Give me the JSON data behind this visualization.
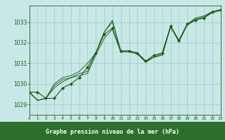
{
  "title": "Graphe pression niveau de la mer (hPa)",
  "bg_color": "#c8e8e8",
  "line_color": "#1a5c1a",
  "label_bar_color": "#2d6e2d",
  "label_text_color": "#ffffff",
  "grid_color": "#a0c8c0",
  "xlim": [
    0,
    23
  ],
  "ylim": [
    1028.5,
    1033.8
  ],
  "yticks": [
    1029,
    1030,
    1031,
    1032,
    1033
  ],
  "xticks": [
    0,
    1,
    2,
    3,
    4,
    5,
    6,
    7,
    8,
    9,
    10,
    11,
    12,
    13,
    14,
    15,
    16,
    17,
    18,
    19,
    20,
    21,
    22,
    23
  ],
  "series": [
    [
      1029.6,
      1029.6,
      1029.3,
      1029.3,
      1029.8,
      1030.0,
      1030.3,
      1030.8,
      1031.5,
      1032.4,
      1032.7,
      1031.6,
      1031.6,
      1031.5,
      1031.1,
      1031.4,
      1031.5,
      1032.8,
      1032.1,
      1032.9,
      1033.1,
      1033.2,
      1033.5,
      1033.6
    ],
    [
      1029.6,
      1029.2,
      1029.3,
      1029.8,
      1030.1,
      1030.3,
      1030.4,
      1030.5,
      1031.4,
      1032.2,
      1032.65,
      1031.55,
      1031.55,
      1031.45,
      1031.05,
      1031.3,
      1031.4,
      1032.75,
      1032.05,
      1032.85,
      1033.1,
      1033.2,
      1033.45,
      1033.55
    ],
    [
      1029.6,
      1029.2,
      1029.3,
      1029.9,
      1030.2,
      1030.3,
      1030.5,
      1030.6,
      1031.5,
      1032.5,
      1033.0,
      1031.6,
      1031.6,
      1031.5,
      1031.1,
      1031.3,
      1031.4,
      1032.8,
      1032.1,
      1032.9,
      1033.15,
      1033.25,
      1033.5,
      1033.6
    ],
    [
      1029.6,
      1029.2,
      1029.3,
      1030.0,
      1030.3,
      1030.4,
      1030.6,
      1031.0,
      1031.5,
      1032.5,
      1033.1,
      1031.6,
      1031.6,
      1031.5,
      1031.1,
      1031.3,
      1031.5,
      1032.8,
      1032.1,
      1032.9,
      1033.2,
      1033.3,
      1033.5,
      1033.6
    ]
  ]
}
